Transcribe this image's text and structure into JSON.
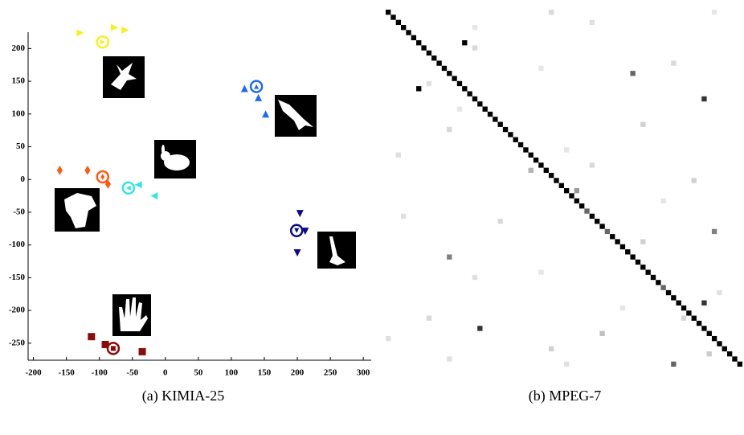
{
  "chart_data": [
    {
      "type": "scatter",
      "caption": "(a) KIMIA-25",
      "xlim": [
        -208,
        312
      ],
      "ylim": [
        -276,
        225
      ],
      "xticks": [
        -200,
        -150,
        -100,
        -50,
        0,
        50,
        100,
        150,
        200,
        250,
        300
      ],
      "yticks": [
        200,
        150,
        100,
        50,
        0,
        -50,
        -100,
        -150,
        -200,
        -250
      ],
      "series": [
        {
          "color": "#f5f020",
          "marker": "triangle-right",
          "x": [
            -129,
            -77,
            -61
          ],
          "y": [
            224,
            232,
            228
          ],
          "center": [
            -95,
            210
          ]
        },
        {
          "color": "#1e6cf0",
          "marker": "triangle-up",
          "x": [
            120,
            141,
            152
          ],
          "y": [
            139,
            125,
            100
          ],
          "center": [
            138,
            142
          ]
        },
        {
          "color": "#ff5a14",
          "marker": "diamond",
          "x": [
            -160,
            -118,
            -87
          ],
          "y": [
            14,
            14,
            -7
          ],
          "center": [
            -95,
            4
          ]
        },
        {
          "color": "#33e6e0",
          "marker": "triangle-left",
          "x": [
            -41,
            -17
          ],
          "y": [
            -8,
            -25
          ],
          "center": [
            -56,
            -13
          ]
        },
        {
          "color": "#0a0a8c",
          "marker": "triangle-down",
          "x": [
            204,
            212,
            200
          ],
          "y": [
            -52,
            -79,
            -112
          ],
          "center": [
            199,
            -78
          ]
        },
        {
          "color": "#8b0a0a",
          "marker": "square",
          "x": [
            -112,
            -91,
            -35
          ],
          "y": [
            -240,
            -252,
            -263
          ],
          "center": [
            -79,
            -258
          ]
        }
      ]
    },
    {
      "type": "matrix",
      "caption": "(b) MPEG-7",
      "size": 70,
      "diagonal": [
        1,
        1,
        1,
        1,
        1,
        1,
        1,
        1,
        1,
        1,
        1,
        1,
        1,
        1,
        1,
        1,
        1,
        1,
        1,
        1,
        1,
        1,
        1,
        1,
        1,
        1,
        1,
        1,
        1,
        1,
        1,
        1,
        1,
        1,
        1,
        1,
        1,
        1,
        1,
        0.6,
        1,
        1,
        1,
        0.6,
        1,
        1,
        1,
        1,
        1,
        1,
        1,
        1,
        1,
        1,
        0.6,
        1,
        1,
        1,
        1,
        1,
        1,
        1,
        1,
        1,
        1,
        1,
        1,
        1,
        1,
        1
      ],
      "off_diagonal": [
        [
          6,
          15,
          1
        ],
        [
          15,
          6,
          1
        ],
        [
          12,
          48,
          0.6
        ],
        [
          17,
          62,
          0.8
        ],
        [
          48,
          12,
          0.5
        ],
        [
          62,
          18,
          0.8
        ],
        [
          57,
          62,
          0.8
        ],
        [
          43,
          64,
          0.5
        ],
        [
          69,
          56,
          0.6
        ],
        [
          0,
          32,
          0.15
        ],
        [
          0,
          64,
          0.1
        ],
        [
          2,
          40,
          0.12
        ],
        [
          3,
          17,
          0.1
        ],
        [
          7,
          17,
          0.15
        ],
        [
          10,
          56,
          0.15
        ],
        [
          11,
          30,
          0.1
        ],
        [
          14,
          8,
          0.12
        ],
        [
          19,
          14,
          0.1
        ],
        [
          22,
          50,
          0.18
        ],
        [
          23,
          12,
          0.15
        ],
        [
          27,
          35,
          0.1
        ],
        [
          28,
          2,
          0.12
        ],
        [
          30,
          40,
          0.15
        ],
        [
          33,
          60,
          0.18
        ],
        [
          37,
          54,
          0.1
        ],
        [
          40,
          3,
          0.12
        ],
        [
          41,
          22,
          0.15
        ],
        [
          45,
          50,
          0.18
        ],
        [
          51,
          30,
          0.1
        ],
        [
          52,
          17,
          0.12
        ],
        [
          55,
          65,
          0.12
        ],
        [
          58,
          46,
          0.1
        ],
        [
          60,
          58,
          0.15
        ],
        [
          63,
          42,
          0.25
        ],
        [
          64,
          0,
          0.12
        ],
        [
          66,
          32,
          0.18
        ],
        [
          67,
          63,
          0.2
        ],
        [
          68,
          12,
          0.12
        ],
        [
          69,
          35,
          0.12
        ],
        [
          35,
          37,
          0.4
        ],
        [
          31,
          28,
          0.3
        ],
        [
          60,
          8,
          0.15
        ]
      ]
    }
  ]
}
